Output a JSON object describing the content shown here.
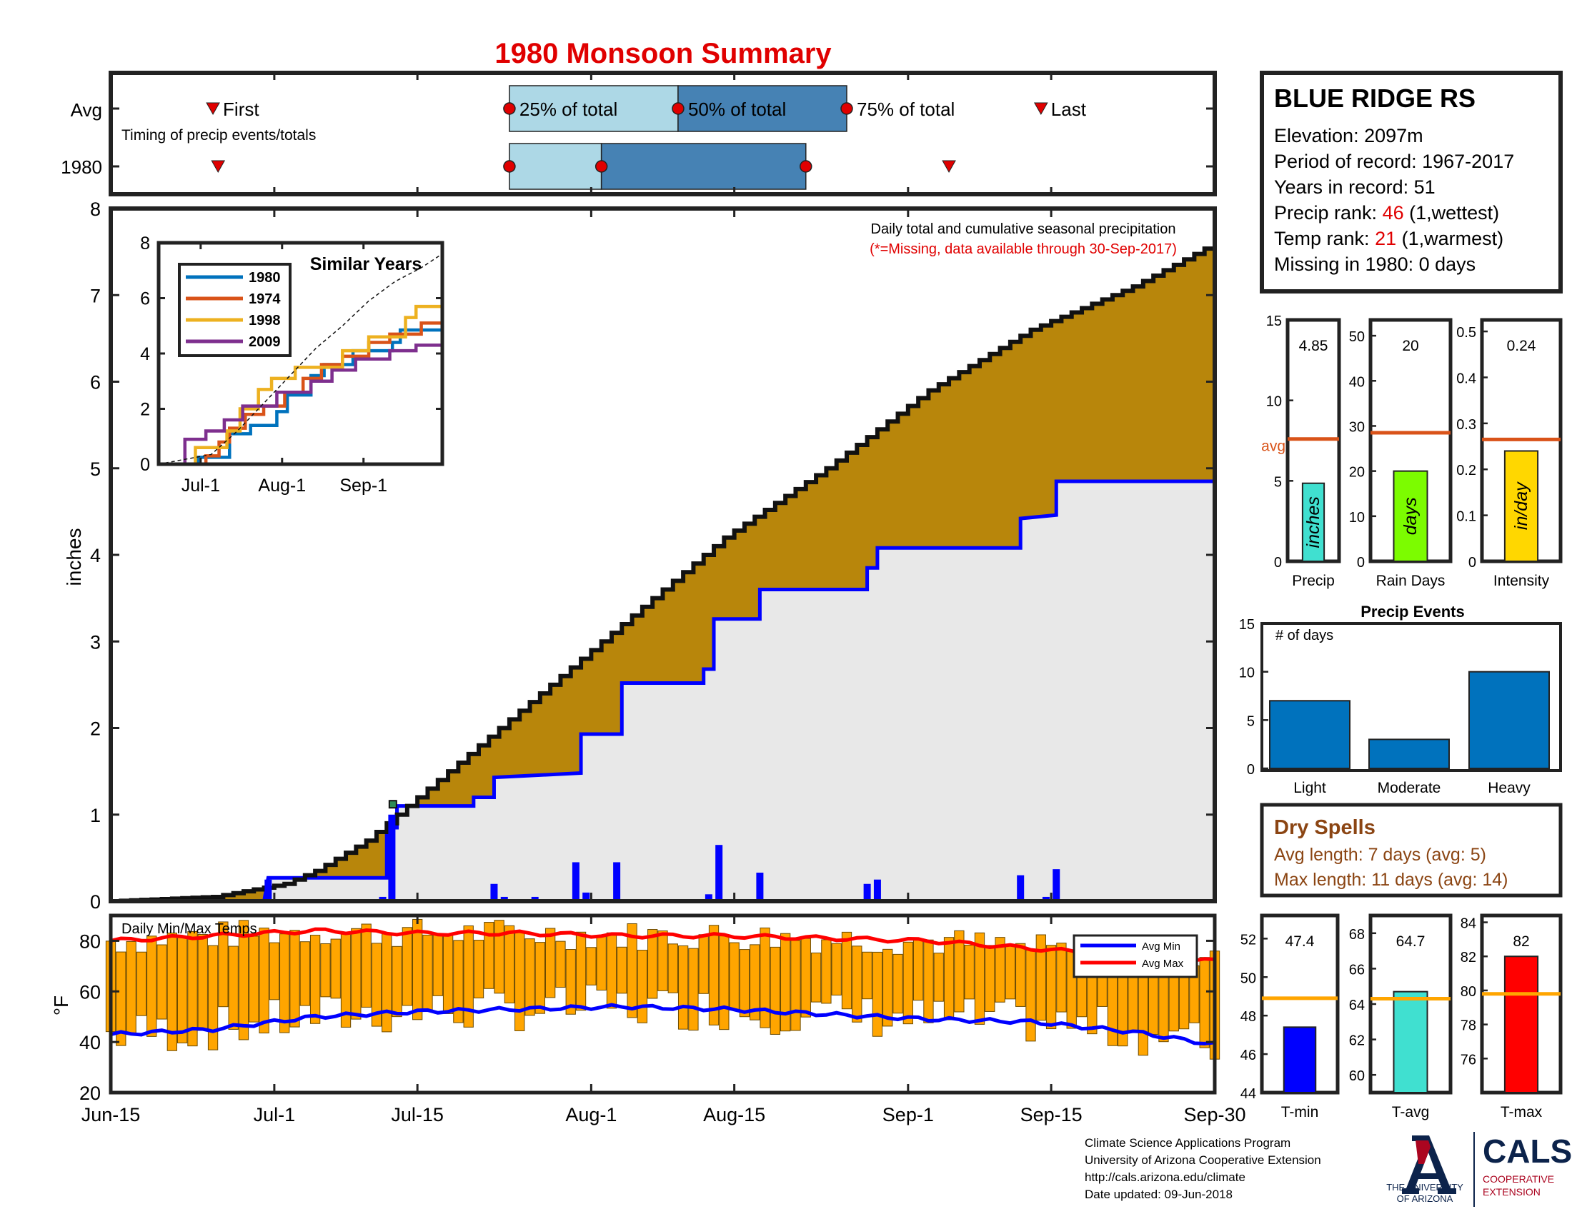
{
  "title": "1980 Monsoon Summary",
  "timing": {
    "row_labels": [
      "Avg",
      "1980"
    ],
    "caption": "Timing of precip events/totals",
    "first_label": "First",
    "last_label": "Last",
    "q25_label": "25% of total",
    "q50_label": "50% of total",
    "q75_label": "75% of total",
    "avg": {
      "first": 10,
      "q25": 39,
      "q50": 55.5,
      "q75": 72,
      "last": 91
    },
    "year": {
      "first": 10.5,
      "q25": 39,
      "q50": 48,
      "q75": 68,
      "last": 82
    }
  },
  "station": {
    "name": "BLUE RIDGE RS",
    "elevation": "Elevation: 2097m",
    "period": "Period of record: 1967-2017",
    "years": "Years in record: 51",
    "precip_rank_prefix": "Precip rank: ",
    "precip_rank_value": "46",
    "precip_rank_suffix": " (1,wettest)",
    "temp_rank_prefix": "Temp rank: ",
    "temp_rank_value": "21",
    "temp_rank_suffix": " (1,warmest)",
    "missing": "Missing in 1980: 0 days"
  },
  "main": {
    "ylabel": "inches",
    "note1": "Daily total and cumulative seasonal precipitation",
    "note2": "(*=Missing, data available through 30-Sep-2017)",
    "x_ticks": [
      "Jun-15",
      "Jul-1",
      "Jul-15",
      "Aug-1",
      "Aug-15",
      "Sep-1",
      "Sep-15",
      "Sep-30"
    ],
    "y_ticks": [
      "0",
      "1",
      "2",
      "3",
      "4",
      "5",
      "6",
      "7",
      "8"
    ]
  },
  "inset": {
    "title": "Similar Years",
    "x_ticks": [
      "Jul-1",
      "Aug-1",
      "Sep-1"
    ],
    "y_ticks": [
      "0",
      "2",
      "4",
      "6",
      "8"
    ],
    "legend": [
      "1980",
      "1974",
      "1998",
      "2009"
    ],
    "colors": [
      "#0072BD",
      "#D95319",
      "#EDB120",
      "#7E2F8E"
    ]
  },
  "temps": {
    "label": "Daily Min/Max Temps",
    "ylabel": "°F",
    "y_ticks": [
      "20",
      "40",
      "60",
      "80"
    ],
    "legend_min": "Avg Min",
    "legend_max": "Avg Max"
  },
  "bars": {
    "precip": {
      "value": "4.85",
      "unit": "inches",
      "label": "Precip",
      "y_ticks": [
        "0",
        "5",
        "10",
        "15"
      ],
      "avg_label": "avg"
    },
    "raindays": {
      "value": "20",
      "unit": "days",
      "label": "Rain Days",
      "y_ticks": [
        "0",
        "10",
        "20",
        "30",
        "40",
        "50"
      ]
    },
    "intensity": {
      "value": "0.24",
      "unit": "in/day",
      "label": "Intensity",
      "y_ticks": [
        "0",
        "0.1",
        "0.2",
        "0.3",
        "0.4",
        "0.5"
      ]
    }
  },
  "events": {
    "title": "Precip Events",
    "sublabel": "# of days",
    "y_ticks": [
      "0",
      "5",
      "10",
      "15"
    ],
    "categories": [
      "Light",
      "Moderate",
      "Heavy"
    ]
  },
  "dry_spells": {
    "title": "Dry Spells",
    "avg": "Avg length: 7 days (avg: 5)",
    "max": "Max length: 11 days (avg: 14)"
  },
  "temp_bars": {
    "tmin": {
      "value": "47.4",
      "label": "T-min",
      "y_ticks": [
        "44",
        "46",
        "48",
        "50",
        "52"
      ]
    },
    "tavg": {
      "value": "64.7",
      "label": "T-avg",
      "y_ticks": [
        "60",
        "62",
        "64",
        "66",
        "68"
      ]
    },
    "tmax": {
      "value": "82",
      "label": "T-max",
      "y_ticks": [
        "76",
        "78",
        "80",
        "82",
        "84"
      ]
    }
  },
  "footer": {
    "line1": "Climate Science Applications Program",
    "line2": "University of Arizona Cooperative Extension",
    "line3": "http://cals.arizona.edu/climate",
    "line4": " Date updated: 09-Jun-2018",
    "ua_line1": "THE UNIVERSITY",
    "ua_line2": "OF ARIZONA",
    "cals": "CALS",
    "cals_sub1": "COOPERATIVE",
    "cals_sub2": "EXTENSION"
  },
  "chart_data": [
    {
      "type": "area",
      "name": "cumulative precipitation",
      "x_range": [
        "Jun-15",
        "Sep-30"
      ],
      "ylim": [
        0,
        8
      ],
      "avg_cumulative": [
        [
          0,
          0
        ],
        [
          10,
          0.05
        ],
        [
          17,
          0.2
        ],
        [
          20,
          0.35
        ],
        [
          25,
          0.7
        ],
        [
          30,
          1.2
        ],
        [
          40,
          2.2
        ],
        [
          50,
          3.2
        ],
        [
          60,
          4.2
        ],
        [
          70,
          5.0
        ],
        [
          80,
          5.9
        ],
        [
          90,
          6.6
        ],
        [
          100,
          7.1
        ],
        [
          108,
          7.6
        ]
      ],
      "year_cumulative": [
        [
          0,
          0
        ],
        [
          15,
          0
        ],
        [
          15.4,
          0.27
        ],
        [
          27,
          0.27
        ],
        [
          27,
          0.85
        ],
        [
          28,
          0.85
        ],
        [
          28,
          1.1
        ],
        [
          35.5,
          1.1
        ],
        [
          35.5,
          1.2
        ],
        [
          37.5,
          1.2
        ],
        [
          37.5,
          1.43
        ],
        [
          46,
          1.48
        ],
        [
          46,
          1.93
        ],
        [
          50,
          1.93
        ],
        [
          50,
          2.52
        ],
        [
          58,
          2.52
        ],
        [
          58,
          2.68
        ],
        [
          59,
          2.68
        ],
        [
          59,
          3.26
        ],
        [
          63.5,
          3.26
        ],
        [
          63.5,
          3.6
        ],
        [
          74,
          3.6
        ],
        [
          74,
          3.85
        ],
        [
          75,
          3.85
        ],
        [
          75,
          4.08
        ],
        [
          89,
          4.08
        ],
        [
          89,
          4.42
        ],
        [
          92.5,
          4.46
        ],
        [
          92.5,
          4.85
        ],
        [
          108,
          4.85
        ]
      ],
      "daily_bars": [
        [
          15.4,
          0.25
        ],
        [
          26.6,
          0.05
        ],
        [
          27.5,
          1.0
        ],
        [
          37.5,
          0.2
        ],
        [
          38.5,
          0.05
        ],
        [
          41.5,
          0.05
        ],
        [
          45.5,
          0.45
        ],
        [
          46.5,
          0.1
        ],
        [
          49.5,
          0.45
        ],
        [
          58.5,
          0.08
        ],
        [
          59.5,
          0.65
        ],
        [
          63.5,
          0.33
        ],
        [
          74,
          0.2
        ],
        [
          75,
          0.25
        ],
        [
          89,
          0.3
        ],
        [
          91.5,
          0.05
        ],
        [
          92.5,
          0.37
        ]
      ],
      "ylabel": "inches"
    },
    {
      "type": "line",
      "name": "Similar Years",
      "x_range": [
        "Jun-15",
        "Sep-30"
      ],
      "ylim": [
        0,
        8
      ],
      "series": [
        {
          "name": "1980",
          "values": [
            [
              0,
              0
            ],
            [
              15,
              0
            ],
            [
              15,
              0.25
            ],
            [
              27,
              0.25
            ],
            [
              27,
              1.1
            ],
            [
              35,
              1.1
            ],
            [
              35,
              1.4
            ],
            [
              45,
              1.4
            ],
            [
              45,
              1.9
            ],
            [
              49,
              1.9
            ],
            [
              49,
              2.5
            ],
            [
              58,
              2.5
            ],
            [
              58,
              3.2
            ],
            [
              63,
              3.2
            ],
            [
              63,
              3.6
            ],
            [
              74,
              3.6
            ],
            [
              74,
              4.1
            ],
            [
              89,
              4.1
            ],
            [
              89,
              4.4
            ],
            [
              92,
              4.4
            ],
            [
              92,
              4.85
            ],
            [
              108,
              4.85
            ]
          ]
        },
        {
          "name": "1974",
          "values": [
            [
              0,
              0
            ],
            [
              18,
              0
            ],
            [
              18,
              0.3
            ],
            [
              23,
              0.3
            ],
            [
              23,
              0.8
            ],
            [
              27,
              0.8
            ],
            [
              27,
              1.3
            ],
            [
              33,
              1.3
            ],
            [
              33,
              1.8
            ],
            [
              40,
              1.8
            ],
            [
              40,
              2.1
            ],
            [
              48,
              2.1
            ],
            [
              48,
              2.6
            ],
            [
              55,
              2.6
            ],
            [
              55,
              3.1
            ],
            [
              62,
              3.1
            ],
            [
              62,
              3.6
            ],
            [
              70,
              3.6
            ],
            [
              70,
              3.9
            ],
            [
              80,
              3.9
            ],
            [
              80,
              4.4
            ],
            [
              88,
              4.4
            ],
            [
              88,
              4.7
            ],
            [
              100,
              4.7
            ],
            [
              100,
              5.1
            ],
            [
              108,
              5.1
            ]
          ]
        },
        {
          "name": "1998",
          "values": [
            [
              0,
              0
            ],
            [
              14,
              0
            ],
            [
              14,
              0.6
            ],
            [
              26,
              0.6
            ],
            [
              26,
              1.2
            ],
            [
              31,
              1.2
            ],
            [
              31,
              2.0
            ],
            [
              38,
              2.0
            ],
            [
              38,
              2.7
            ],
            [
              43,
              2.7
            ],
            [
              43,
              3.1
            ],
            [
              52,
              3.1
            ],
            [
              52,
              3.5
            ],
            [
              70,
              3.5
            ],
            [
              70,
              4.1
            ],
            [
              80,
              4.1
            ],
            [
              80,
              4.6
            ],
            [
              94,
              4.6
            ],
            [
              94,
              5.3
            ],
            [
              98,
              5.3
            ],
            [
              98,
              5.7
            ],
            [
              108,
              5.7
            ]
          ]
        },
        {
          "name": "2009",
          "values": [
            [
              0,
              0
            ],
            [
              10,
              0
            ],
            [
              10,
              0.9
            ],
            [
              18,
              0.9
            ],
            [
              18,
              1.2
            ],
            [
              25,
              1.2
            ],
            [
              25,
              1.6
            ],
            [
              32,
              1.6
            ],
            [
              32,
              2.1
            ],
            [
              45,
              2.1
            ],
            [
              45,
              2.6
            ],
            [
              58,
              2.6
            ],
            [
              58,
              3.0
            ],
            [
              66,
              3.0
            ],
            [
              66,
              3.4
            ],
            [
              75,
              3.4
            ],
            [
              75,
              3.8
            ],
            [
              88,
              3.8
            ],
            [
              88,
              4.1
            ],
            [
              98,
              4.1
            ],
            [
              98,
              4.3
            ],
            [
              108,
              4.3
            ]
          ]
        },
        {
          "name": "avg",
          "values": [
            [
              0,
              0
            ],
            [
              20,
              0.35
            ],
            [
              30,
              1.2
            ],
            [
              40,
              2.2
            ],
            [
              50,
              3.2
            ],
            [
              60,
              4.2
            ],
            [
              70,
              5.0
            ],
            [
              80,
              5.9
            ],
            [
              90,
              6.6
            ],
            [
              100,
              7.1
            ],
            [
              108,
              7.6
            ]
          ]
        }
      ]
    },
    {
      "type": "bar",
      "name": "Daily Min/Max Temps",
      "x_range": [
        "Jun-15",
        "Sep-30"
      ],
      "ylim": [
        20,
        90
      ],
      "avg_max": [
        [
          0,
          80
        ],
        [
          10,
          82
        ],
        [
          20,
          84
        ],
        [
          30,
          83
        ],
        [
          40,
          83
        ],
        [
          50,
          82
        ],
        [
          60,
          82
        ],
        [
          70,
          81
        ],
        [
          80,
          80
        ],
        [
          90,
          77
        ],
        [
          100,
          74
        ],
        [
          108,
          72
        ]
      ],
      "avg_min": [
        [
          0,
          43
        ],
        [
          10,
          45
        ],
        [
          20,
          50
        ],
        [
          30,
          52
        ],
        [
          40,
          53
        ],
        [
          50,
          54
        ],
        [
          60,
          53
        ],
        [
          70,
          51
        ],
        [
          80,
          49
        ],
        [
          90,
          48
        ],
        [
          100,
          44
        ],
        [
          108,
          39
        ]
      ]
    },
    {
      "type": "bar",
      "name": "Precip",
      "categories": [
        "Precip"
      ],
      "values": [
        4.85
      ],
      "avg": 7.6,
      "ylim": [
        0,
        15
      ]
    },
    {
      "type": "bar",
      "name": "Rain Days",
      "categories": [
        "Rain Days"
      ],
      "values": [
        20
      ],
      "avg": 28.5,
      "ylim": [
        0,
        50
      ]
    },
    {
      "type": "bar",
      "name": "Intensity",
      "categories": [
        "Intensity"
      ],
      "values": [
        0.24
      ],
      "avg": 0.265,
      "ylim": [
        0,
        0.5
      ]
    },
    {
      "type": "bar",
      "name": "Precip Events",
      "categories": [
        "Light",
        "Moderate",
        "Heavy"
      ],
      "values": [
        7,
        3,
        10
      ],
      "ylim": [
        0,
        15
      ]
    },
    {
      "type": "bar",
      "name": "T-min",
      "categories": [
        "T-min"
      ],
      "values": [
        47.4
      ],
      "avg": 48.9,
      "ylim": [
        44,
        53
      ]
    },
    {
      "type": "bar",
      "name": "T-avg",
      "categories": [
        "T-avg"
      ],
      "values": [
        64.7
      ],
      "avg": 64.3,
      "ylim": [
        59,
        69
      ]
    },
    {
      "type": "bar",
      "name": "T-max",
      "categories": [
        "T-max"
      ],
      "values": [
        82
      ],
      "avg": 79.8,
      "ylim": [
        74,
        84
      ]
    }
  ],
  "colors": {
    "title": "#e00000",
    "avg_fill": "#b8860b",
    "year_fill": "#e8e8e8",
    "year_line": "#0000ff",
    "bar_light": "#add8e6",
    "bar_dark": "#4682b4",
    "temp_bar": "#ffa500",
    "precip_bar": "#40e0d0",
    "days_bar": "#7cfc00",
    "intensity_bar": "#ffd700",
    "avg_line": "#d95319",
    "tavg_line": "#ffa500",
    "event_bar": "#0072bd",
    "dry_text": "#8b4513",
    "tmin_bar": "#0000ff",
    "tavg_bar": "#40e0d0",
    "tmax_bar": "#ff0000",
    "ua_blue": "#0c234b",
    "ua_red": "#ab0520"
  }
}
